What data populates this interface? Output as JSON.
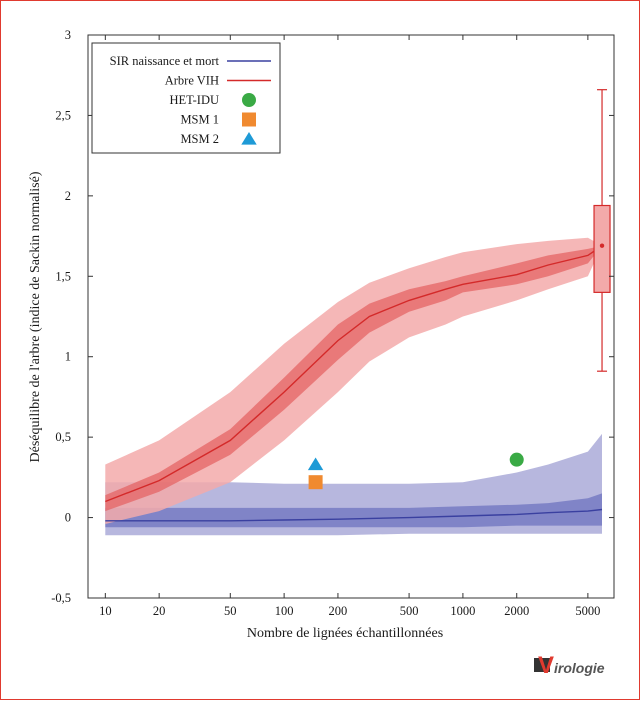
{
  "chart_data": {
    "type": "line",
    "xlabel": "Nombre de lignées échantillonnées",
    "ylabel": "Déséquilibre de l'arbre (indice de Sackin normalisé)",
    "x_scale": "log",
    "xlim": [
      8,
      7000
    ],
    "ylim": [
      -0.5,
      3
    ],
    "x_ticks": [
      {
        "value": 10,
        "label": "10"
      },
      {
        "value": 20,
        "label": "20"
      },
      {
        "value": 50,
        "label": "50"
      },
      {
        "value": 100,
        "label": "100"
      },
      {
        "value": 200,
        "label": "200"
      },
      {
        "value": 500,
        "label": "500"
      },
      {
        "value": 1000,
        "label": "1000"
      },
      {
        "value": 2000,
        "label": "2000"
      },
      {
        "value": 5000,
        "label": "5000"
      }
    ],
    "y_ticks": [
      {
        "value": -0.5,
        "label": "-0,5"
      },
      {
        "value": 0,
        "label": "0"
      },
      {
        "value": 0.5,
        "label": "0,5"
      },
      {
        "value": 1,
        "label": "1"
      },
      {
        "value": 1.5,
        "label": "1,5"
      },
      {
        "value": 2,
        "label": "2"
      },
      {
        "value": 2.5,
        "label": "2,5"
      },
      {
        "value": 3,
        "label": "3"
      }
    ],
    "legend_position": "top-left",
    "series": [
      {
        "name": "SIR naissance et mort",
        "color": "#3a40a0",
        "x": [
          10,
          20,
          50,
          100,
          200,
          500,
          1000,
          2000,
          3000,
          5000,
          6000
        ],
        "median": [
          -0.02,
          -0.02,
          -0.02,
          -0.015,
          -0.01,
          0.0,
          0.01,
          0.02,
          0.03,
          0.04,
          0.05
        ],
        "band_inner": {
          "lower": [
            -0.06,
            -0.06,
            -0.06,
            -0.06,
            -0.06,
            -0.06,
            -0.06,
            -0.05,
            -0.05,
            -0.05,
            -0.05
          ],
          "upper": [
            0.06,
            0.06,
            0.06,
            0.06,
            0.06,
            0.06,
            0.07,
            0.08,
            0.09,
            0.12,
            0.15
          ]
        },
        "band_outer": {
          "lower": [
            -0.11,
            -0.11,
            -0.11,
            -0.11,
            -0.11,
            -0.1,
            -0.1,
            -0.1,
            -0.1,
            -0.1,
            -0.1
          ],
          "upper": [
            0.22,
            0.22,
            0.22,
            0.21,
            0.21,
            0.21,
            0.22,
            0.28,
            0.33,
            0.41,
            0.52
          ]
        }
      },
      {
        "name": "Arbre VIH",
        "color": "#e03a3a",
        "x": [
          10,
          20,
          50,
          100,
          200,
          300,
          500,
          800,
          1000,
          2000,
          3000,
          5000,
          6000
        ],
        "median": [
          0.1,
          0.23,
          0.48,
          0.78,
          1.1,
          1.25,
          1.35,
          1.42,
          1.45,
          1.51,
          1.57,
          1.63,
          1.69
        ],
        "band_inner": {
          "lower": [
            0.04,
            0.16,
            0.39,
            0.67,
            0.98,
            1.15,
            1.28,
            1.35,
            1.4,
            1.45,
            1.5,
            1.58,
            1.69
          ],
          "upper": [
            0.14,
            0.28,
            0.55,
            0.87,
            1.2,
            1.33,
            1.42,
            1.47,
            1.5,
            1.58,
            1.63,
            1.67,
            1.69
          ]
        },
        "band_outer": {
          "lower": [
            -0.04,
            0.04,
            0.22,
            0.48,
            0.78,
            0.97,
            1.12,
            1.2,
            1.25,
            1.35,
            1.42,
            1.5,
            1.69
          ],
          "upper": [
            0.33,
            0.48,
            0.78,
            1.08,
            1.34,
            1.46,
            1.55,
            1.62,
            1.65,
            1.7,
            1.72,
            1.74,
            1.69
          ]
        },
        "box": {
          "x": 6000,
          "q1": 1.4,
          "q3": 1.94,
          "median": 1.69,
          "whisker_low": 0.91,
          "whisker_high": 2.66
        }
      }
    ],
    "points": [
      {
        "name": "HET-IDU",
        "x": 2000,
        "y": 0.36,
        "shape": "circle",
        "color": "#3aaa45"
      },
      {
        "name": "MSM 1",
        "x": 150,
        "y": 0.22,
        "shape": "square",
        "color": "#f08a30"
      },
      {
        "name": "MSM 2",
        "x": 150,
        "y": 0.33,
        "shape": "triangle",
        "color": "#1e9ad6"
      }
    ]
  },
  "logo": {
    "initial": "V",
    "rest": "irologie"
  }
}
